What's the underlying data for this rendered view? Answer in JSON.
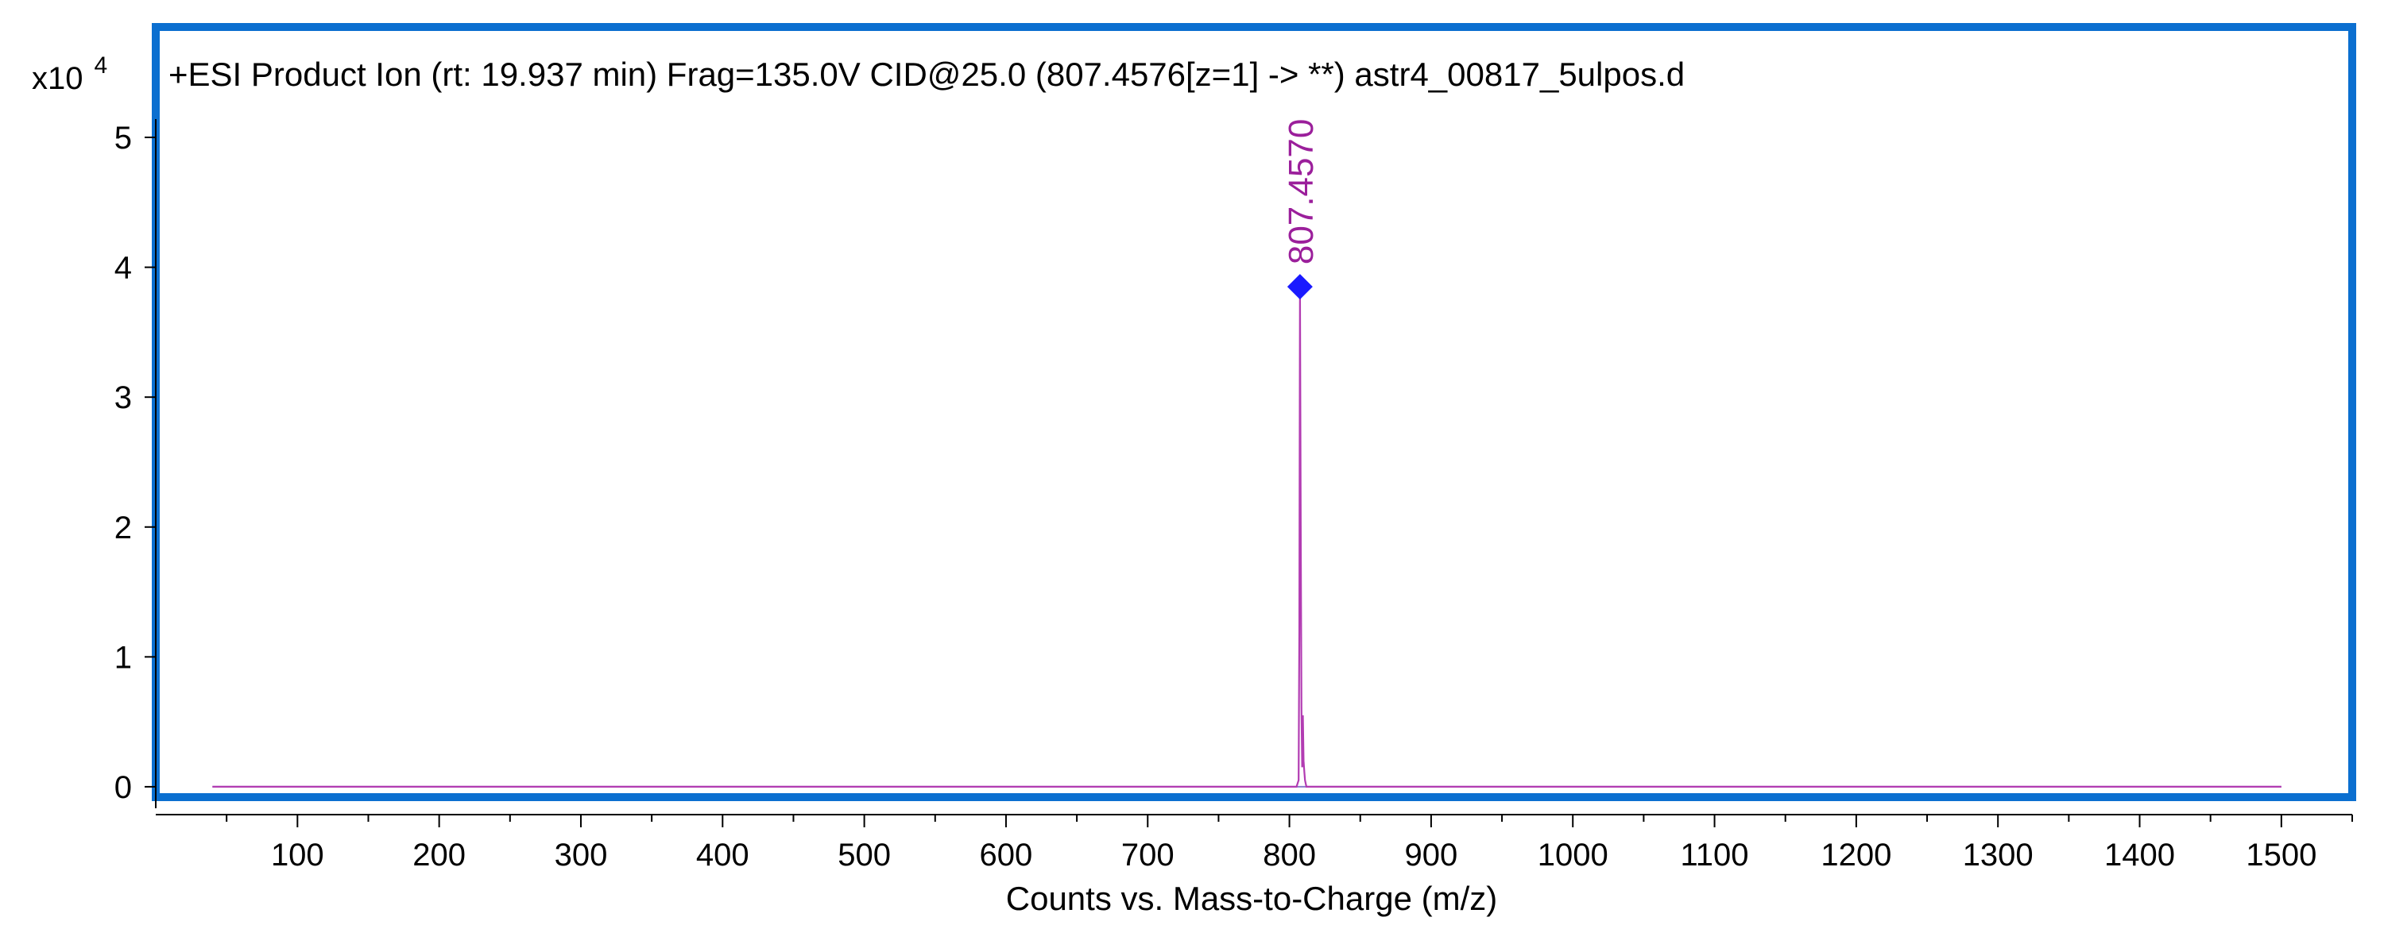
{
  "chart_data": {
    "type": "line",
    "title": "+ESI Product Ion (rt: 19.937 min) Frag=135.0V CID@25.0 (807.4576[z=1] -> **) astr4_00817_5ulpos.d",
    "xlabel": "Counts vs. Mass-to-Charge (m/z)",
    "ylabel": "",
    "y_multiplier_base": "x10",
    "y_multiplier_exp": "4",
    "xlim": [
      0,
      1550
    ],
    "ylim": [
      -0.08,
      5.85
    ],
    "x_ticks": [
      100,
      200,
      300,
      400,
      500,
      600,
      700,
      800,
      900,
      1000,
      1100,
      1200,
      1300,
      1400,
      1500
    ],
    "y_ticks": [
      0,
      1,
      2,
      3,
      4,
      5
    ],
    "grid": false,
    "series": [
      {
        "color": "#b23cb2",
        "x": [
          40,
          805.0,
          806.5,
          807.0,
          807.457,
          808.0,
          808.5,
          809.0,
          809.5,
          810.0,
          810.5,
          811.0,
          812.0,
          1500
        ],
        "y": [
          0,
          0,
          0.05,
          1.2,
          3.85,
          2.0,
          0.6,
          0.15,
          0.55,
          0.2,
          0.12,
          0.05,
          0,
          0
        ]
      }
    ],
    "annotations": [
      {
        "x": 807.457,
        "y": 3.85,
        "label": "807.4570",
        "marker": "diamond",
        "marker_color": "#1a1aff",
        "label_color": "#9b1f9b"
      }
    ],
    "frame_color": "#0b6fd0"
  }
}
